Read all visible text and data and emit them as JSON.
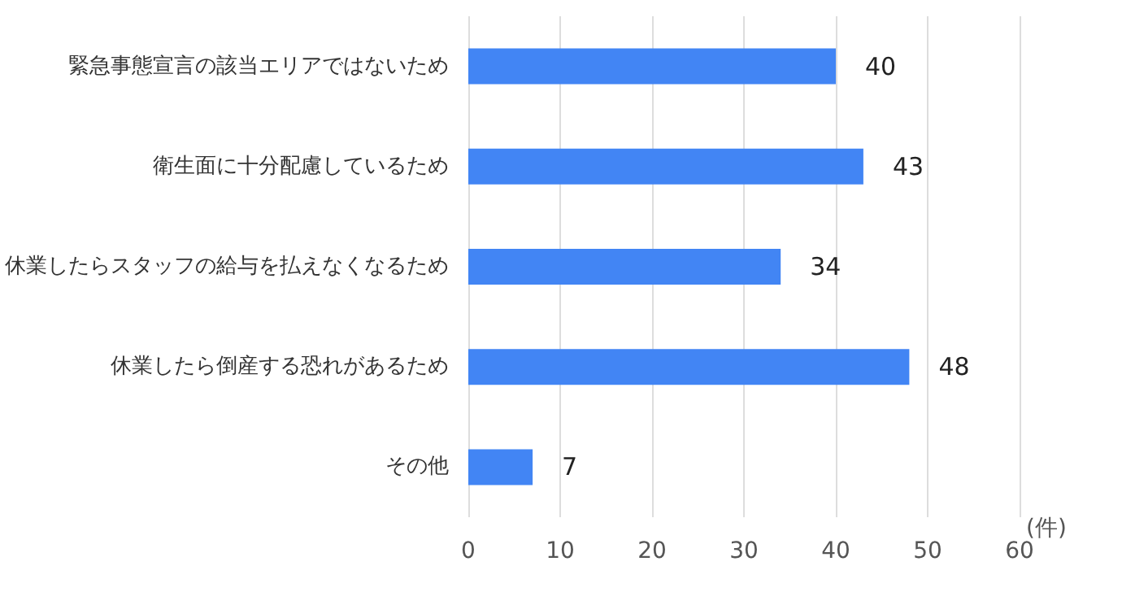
{
  "chart_data": {
    "type": "bar",
    "orientation": "horizontal",
    "categories": [
      "緊急事態宣言の該当エリアではないため",
      "衛生面に十分配慮しているため",
      "休業したらスタッフの給与を払えなくなるため",
      "休業したら倒産する恐れがあるため",
      "その他"
    ],
    "values": [
      40,
      43,
      34,
      48,
      7
    ],
    "color": "#4285f4",
    "xlabel": "(件)",
    "xlim": [
      0,
      60
    ],
    "xticks": [
      0,
      10,
      20,
      30,
      40,
      50,
      60
    ],
    "grid": "x",
    "data_labels": true
  }
}
